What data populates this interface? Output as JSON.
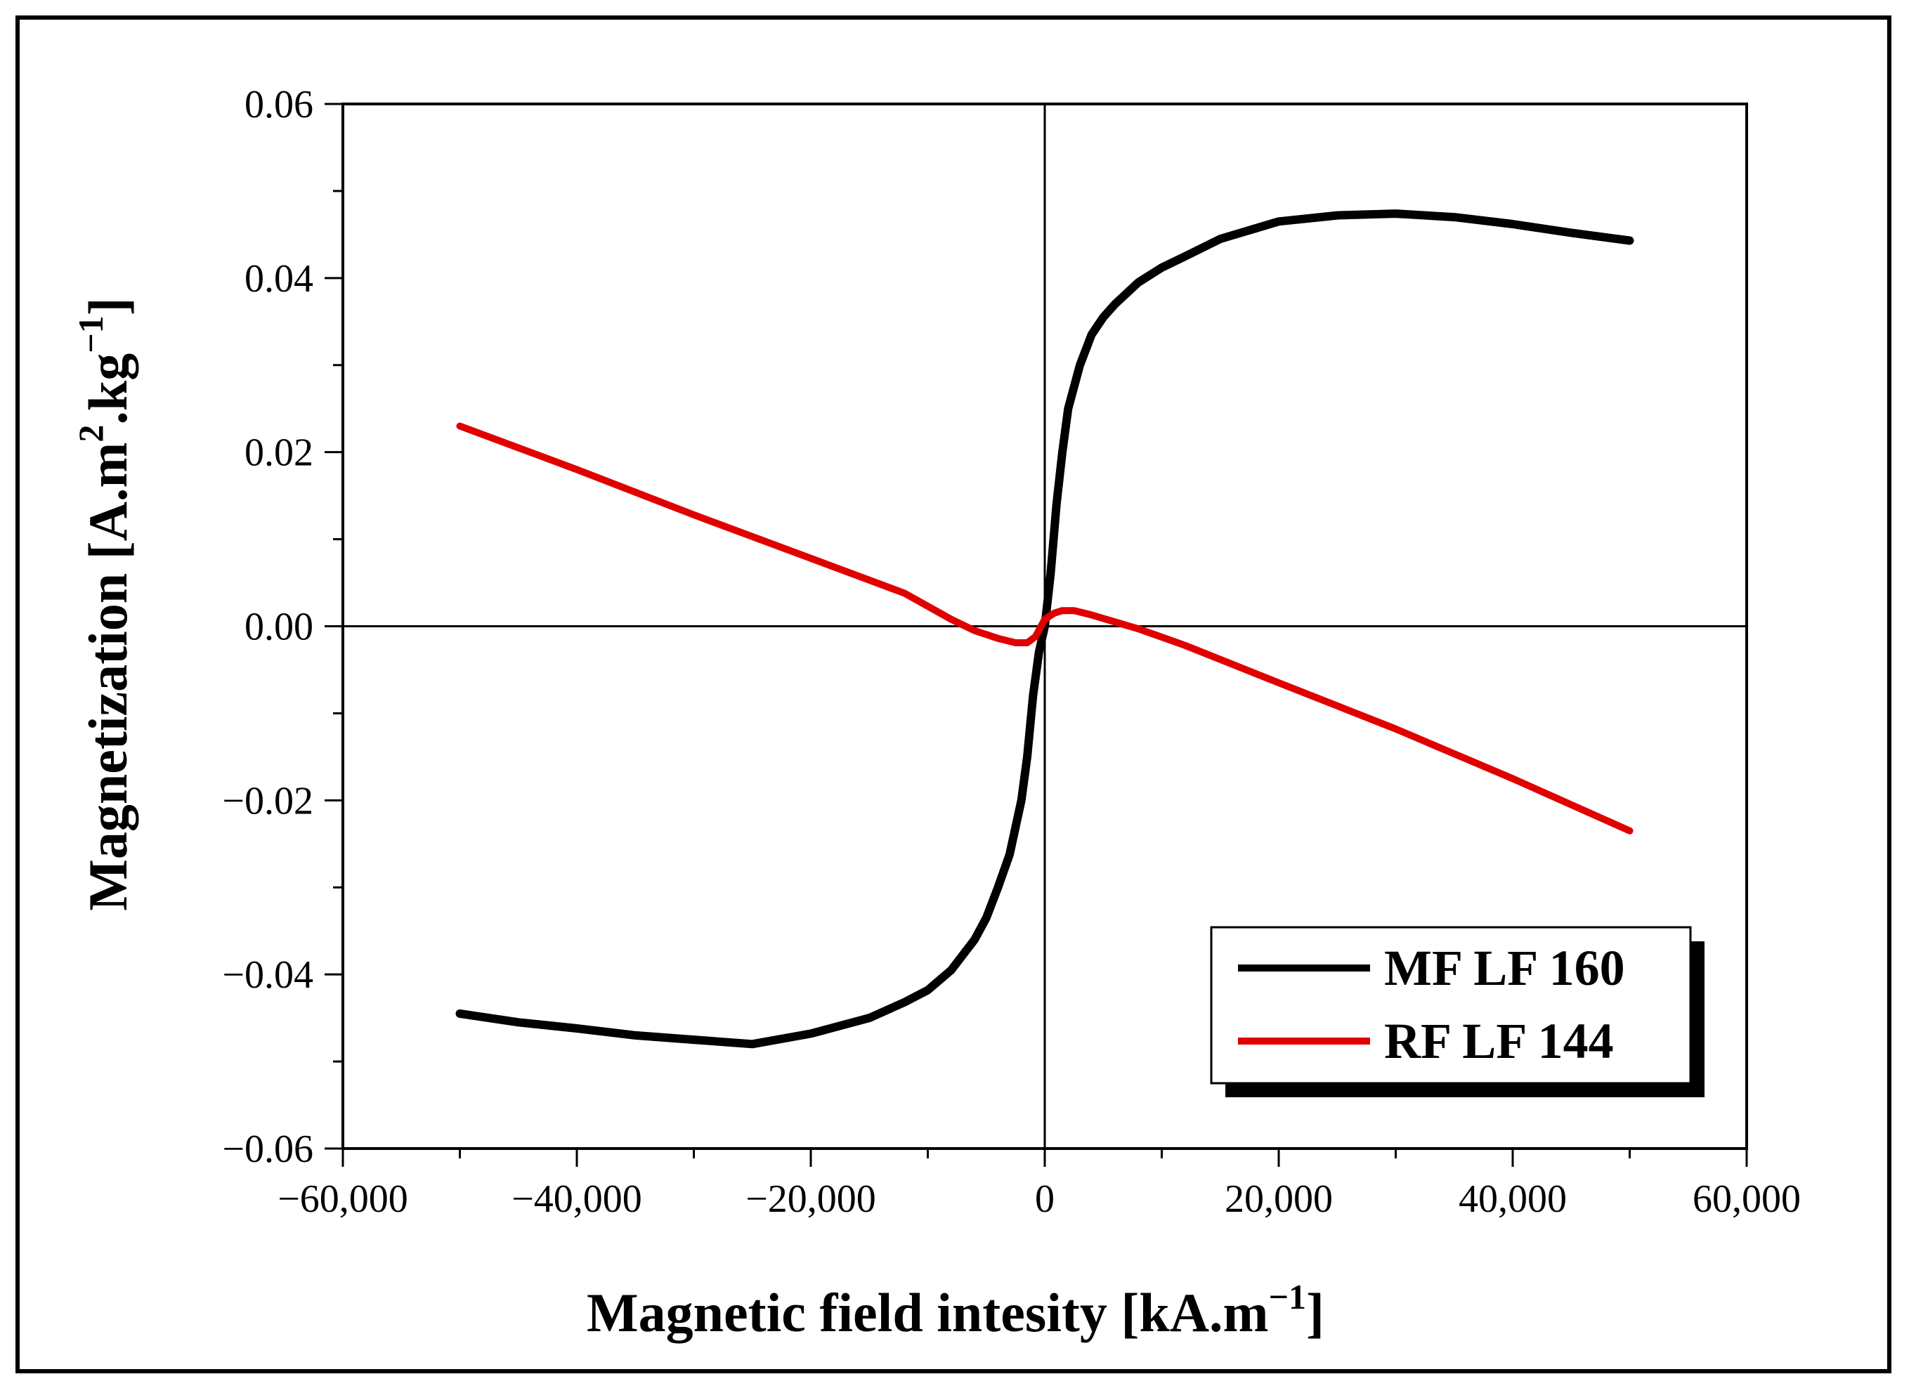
{
  "chart_data": {
    "type": "line",
    "title": "",
    "xlabel": "Magnetic field intesity [kA.m",
    "xlabel_superscript": "−1",
    "xlabel_close": "]",
    "ylabel": "Magnetization [A.m",
    "ylabel_sup1": "2",
    "ylabel_mid": ".kg",
    "ylabel_sup2": "−1",
    "ylabel_close": "]",
    "xlim": [
      -60000,
      60000
    ],
    "ylim": [
      -0.06,
      0.06
    ],
    "x_ticks": [
      -60000,
      -40000,
      -20000,
      0,
      20000,
      40000,
      60000
    ],
    "x_tick_labels": [
      "−60,000",
      "−40,000",
      "−20,000",
      "0",
      "20,000",
      "40,000",
      "60,000"
    ],
    "y_ticks": [
      -0.06,
      -0.04,
      -0.02,
      0.0,
      0.02,
      0.04,
      0.06
    ],
    "y_tick_labels": [
      "−0.06",
      "−0.04",
      "−0.02",
      "0.00",
      "0.02",
      "0.04",
      "0.06"
    ],
    "zero_lines": true,
    "grid": false,
    "legend_position": "bottom-right",
    "series": [
      {
        "name": "MF LF 160",
        "color": "#000000",
        "x": [
          -50000,
          -45000,
          -40000,
          -35000,
          -30000,
          -25000,
          -20000,
          -15000,
          -12000,
          -10000,
          -8000,
          -6000,
          -5000,
          -4000,
          -3000,
          -2000,
          -1500,
          -1000,
          -500,
          0,
          500,
          1000,
          1500,
          2000,
          3000,
          4000,
          5000,
          6000,
          8000,
          10000,
          12000,
          15000,
          20000,
          25000,
          30000,
          35000,
          40000,
          45000,
          50000
        ],
        "values": [
          -0.0445,
          -0.0455,
          -0.0462,
          -0.047,
          -0.0475,
          -0.048,
          -0.0468,
          -0.045,
          -0.0432,
          -0.0418,
          -0.0395,
          -0.036,
          -0.0335,
          -0.03,
          -0.0262,
          -0.02,
          -0.015,
          -0.008,
          -0.003,
          0.0,
          0.006,
          0.014,
          0.02,
          0.025,
          0.03,
          0.0335,
          0.0355,
          0.037,
          0.0395,
          0.0412,
          0.0425,
          0.0445,
          0.0465,
          0.0472,
          0.0474,
          0.047,
          0.0462,
          0.0452,
          0.0443
        ]
      },
      {
        "name": "RF LF 144",
        "color": "#e00000",
        "x": [
          -50000,
          -40000,
          -30000,
          -20000,
          -12000,
          -8000,
          -6000,
          -4000,
          -2500,
          -1500,
          -800,
          0,
          800,
          1500,
          2500,
          4000,
          6000,
          8000,
          12000,
          20000,
          30000,
          40000,
          50000
        ],
        "values": [
          0.023,
          0.018,
          0.0128,
          0.0078,
          0.0038,
          0.0008,
          -0.0005,
          -0.0014,
          -0.0019,
          -0.0019,
          -0.0012,
          0.0008,
          0.0015,
          0.0018,
          0.0018,
          0.0013,
          0.0005,
          -0.0003,
          -0.0022,
          -0.0065,
          -0.0118,
          -0.0175,
          -0.0235
        ]
      }
    ]
  }
}
